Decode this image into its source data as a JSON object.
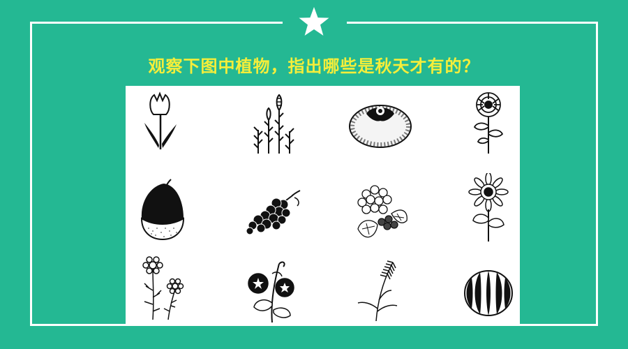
{
  "question": "观察下图中植物，指出哪些是秋天才有的？",
  "colors": {
    "background": "#24b893",
    "frame": "#ffffff",
    "question_text": "#f5ee3a",
    "ink": "#111111"
  },
  "icons": {
    "star": "star-icon",
    "plants": [
      "tulip-icon",
      "horsetail-icon",
      "persimmon-icon",
      "chrysanthemum-icon",
      "chestnut-icon",
      "grapes-icon",
      "hydrangea-icon",
      "sunflower-icon",
      "cosmos-icon",
      "morning-glory-icon",
      "pampas-grass-icon",
      "watermelon-icon"
    ]
  }
}
